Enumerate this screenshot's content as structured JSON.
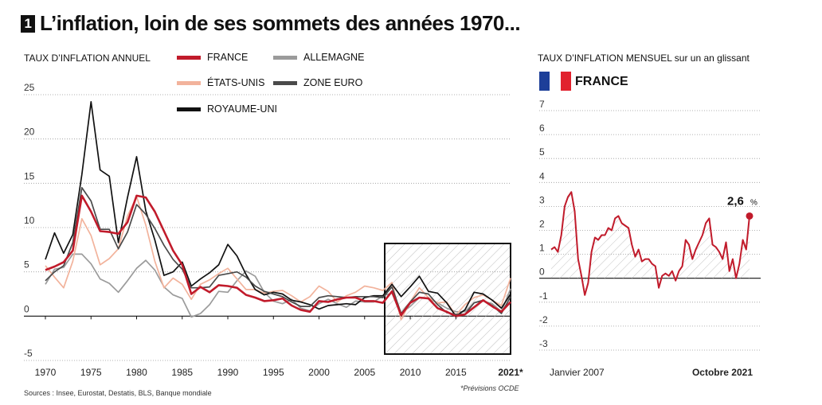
{
  "headline": {
    "number": "1",
    "title": "L’inflation, loin de ses sommets des années 1970..."
  },
  "source": "Sources : Insee, Eurostat, Destatis, BLS, Banque mondiale",
  "footnote": "*Prévisions OCDE",
  "colors": {
    "france": "#c11b2b",
    "etats_unis": "#f2b39c",
    "allemagne": "#9b9b9b",
    "zone_euro": "#4a4a4a",
    "royaume_uni": "#111111",
    "flag_blue": "#1d3f99",
    "flag_white": "#ffffff",
    "flag_red": "#e1222e"
  },
  "chart_data": [
    {
      "type": "line",
      "title": "TAUX D’INFLATION ANNUEL",
      "xlabel": "",
      "ylabel": "",
      "xlim": [
        1970,
        2021
      ],
      "ylim": [
        -5,
        25
      ],
      "yticks": [
        -5,
        0,
        5,
        10,
        15,
        20,
        25
      ],
      "xticks": [
        "1970",
        "1975",
        "1980",
        "1985",
        "1990",
        "1995",
        "2000",
        "2005",
        "2010",
        "2015",
        "2021*"
      ],
      "grid": true,
      "legend": [
        "FRANCE",
        "ALLEMAGNE",
        "ÉTATS-UNIS",
        "ZONE EURO",
        "ROYAUME-UNI"
      ],
      "x": [
        1970,
        1971,
        1972,
        1973,
        1974,
        1975,
        1976,
        1977,
        1978,
        1979,
        1980,
        1981,
        1982,
        1983,
        1984,
        1985,
        1986,
        1987,
        1988,
        1989,
        1990,
        1991,
        1992,
        1993,
        1994,
        1995,
        1996,
        1997,
        1998,
        1999,
        2000,
        2001,
        2002,
        2003,
        2004,
        2005,
        2006,
        2007,
        2008,
        2009,
        2010,
        2011,
        2012,
        2013,
        2014,
        2015,
        2016,
        2017,
        2018,
        2019,
        2020,
        2021
      ],
      "series": [
        {
          "name": "FRANCE",
          "values": [
            5.2,
            5.6,
            6.1,
            7.4,
            13.6,
            11.8,
            9.6,
            9.5,
            9.3,
            10.6,
            13.6,
            13.4,
            11.8,
            9.6,
            7.4,
            5.8,
            2.5,
            3.3,
            2.7,
            3.5,
            3.4,
            3.2,
            2.4,
            2.1,
            1.7,
            1.8,
            2.0,
            1.2,
            0.7,
            0.5,
            1.7,
            1.6,
            1.9,
            2.1,
            2.1,
            1.7,
            1.7,
            1.5,
            2.8,
            0.1,
            1.5,
            2.1,
            2.0,
            0.9,
            0.5,
            0.0,
            0.2,
            1.0,
            1.8,
            1.1,
            0.5,
            1.6
          ]
        },
        {
          "name": "ALLEMAGNE",
          "values": [
            3.6,
            5.3,
            5.5,
            7.0,
            7.0,
            5.9,
            4.2,
            3.7,
            2.7,
            4.0,
            5.4,
            6.3,
            5.2,
            3.3,
            2.4,
            2.0,
            -0.1,
            0.3,
            1.3,
            2.8,
            2.7,
            4.0,
            5.1,
            4.5,
            2.7,
            1.7,
            1.4,
            1.9,
            0.9,
            0.6,
            1.4,
            1.9,
            1.4,
            1.0,
            1.7,
            1.6,
            1.6,
            2.3,
            2.6,
            0.3,
            1.1,
            2.1,
            2.0,
            1.5,
            0.9,
            0.5,
            0.5,
            1.5,
            1.7,
            1.4,
            0.5,
            3.1
          ]
        },
        {
          "name": "ÉTATS-UNIS",
          "values": [
            5.7,
            4.4,
            3.2,
            6.2,
            11.0,
            9.1,
            5.8,
            6.5,
            7.6,
            11.3,
            13.5,
            10.3,
            6.2,
            3.2,
            4.3,
            3.6,
            1.9,
            3.6,
            4.1,
            4.8,
            5.4,
            4.2,
            3.0,
            3.0,
            2.6,
            2.8,
            2.9,
            2.3,
            1.6,
            2.2,
            3.4,
            2.8,
            1.6,
            2.3,
            2.7,
            3.4,
            3.2,
            2.9,
            3.8,
            -0.4,
            1.6,
            3.2,
            2.1,
            1.5,
            1.6,
            0.1,
            1.3,
            2.1,
            2.4,
            1.8,
            1.2,
            4.3
          ]
        },
        {
          "name": "ZONE EURO",
          "values": [
            4.0,
            5.0,
            5.7,
            8.3,
            14.5,
            13.0,
            9.8,
            9.8,
            7.6,
            9.5,
            12.6,
            11.5,
            9.9,
            8.0,
            6.4,
            5.3,
            3.2,
            3.2,
            3.3,
            4.6,
            4.8,
            5.0,
            4.4,
            3.4,
            2.8,
            2.5,
            2.2,
            1.6,
            1.1,
            1.1,
            2.1,
            2.3,
            2.2,
            2.1,
            2.2,
            2.2,
            2.2,
            2.1,
            3.3,
            0.3,
            1.6,
            2.7,
            2.5,
            1.3,
            0.4,
            0.2,
            0.2,
            1.5,
            1.8,
            1.2,
            0.3,
            2.2
          ]
        },
        {
          "name": "ROYAUME-UNI",
          "values": [
            6.4,
            9.4,
            7.1,
            9.2,
            16.0,
            24.2,
            16.5,
            15.8,
            8.3,
            13.4,
            18.0,
            11.9,
            8.6,
            4.6,
            5.0,
            6.1,
            3.4,
            4.2,
            4.9,
            5.8,
            8.1,
            6.8,
            4.7,
            3.0,
            2.4,
            2.7,
            2.5,
            1.8,
            1.6,
            1.3,
            0.8,
            1.2,
            1.3,
            1.4,
            1.3,
            2.1,
            2.3,
            2.3,
            3.6,
            2.2,
            3.3,
            4.5,
            2.8,
            2.6,
            1.5,
            0.0,
            0.7,
            2.7,
            2.5,
            1.8,
            0.9,
            2.5
          ]
        }
      ]
    },
    {
      "type": "area",
      "title": "TAUX D’INFLATION MENSUEL sur un an glissant",
      "country_label": "FRANCE",
      "xlabel": "",
      "ylabel": "",
      "ylim": [
        -3,
        7
      ],
      "yticks": [
        -3,
        -2,
        -1,
        0,
        1,
        2,
        3,
        4,
        5,
        6,
        7
      ],
      "xticks": [
        "Janvier 2007",
        "Octobre 2021"
      ],
      "grid": true,
      "annotation": {
        "text": "2,6",
        "unit": "%",
        "x": "2021-10",
        "y": 2.6
      },
      "x": [
        "2007-01",
        "2007-04",
        "2007-07",
        "2007-10",
        "2008-01",
        "2008-04",
        "2008-07",
        "2008-10",
        "2009-01",
        "2009-04",
        "2009-07",
        "2009-10",
        "2010-01",
        "2010-04",
        "2010-07",
        "2010-10",
        "2011-01",
        "2011-04",
        "2011-07",
        "2011-10",
        "2012-01",
        "2012-04",
        "2012-07",
        "2012-10",
        "2013-01",
        "2013-04",
        "2013-07",
        "2013-10",
        "2014-01",
        "2014-04",
        "2014-07",
        "2014-10",
        "2015-01",
        "2015-04",
        "2015-07",
        "2015-10",
        "2016-01",
        "2016-04",
        "2016-07",
        "2016-10",
        "2017-01",
        "2017-04",
        "2017-07",
        "2017-10",
        "2018-01",
        "2018-04",
        "2018-07",
        "2018-10",
        "2019-01",
        "2019-04",
        "2019-07",
        "2019-10",
        "2020-01",
        "2020-04",
        "2020-07",
        "2020-10",
        "2021-01",
        "2021-04",
        "2021-07",
        "2021-10"
      ],
      "values": [
        1.2,
        1.3,
        1.1,
        1.8,
        3.0,
        3.4,
        3.6,
        2.8,
        0.8,
        0.1,
        -0.7,
        -0.2,
        1.1,
        1.7,
        1.6,
        1.8,
        1.8,
        2.1,
        2.0,
        2.5,
        2.6,
        2.3,
        2.2,
        2.1,
        1.4,
        0.9,
        1.2,
        0.7,
        0.8,
        0.8,
        0.6,
        0.5,
        -0.4,
        0.1,
        0.2,
        0.1,
        0.3,
        -0.1,
        0.3,
        0.5,
        1.6,
        1.4,
        0.8,
        1.2,
        1.5,
        1.8,
        2.3,
        2.5,
        1.4,
        1.3,
        1.1,
        0.8,
        1.5,
        0.3,
        0.8,
        0.0,
        0.6,
        1.6,
        1.2,
        2.6
      ]
    }
  ]
}
